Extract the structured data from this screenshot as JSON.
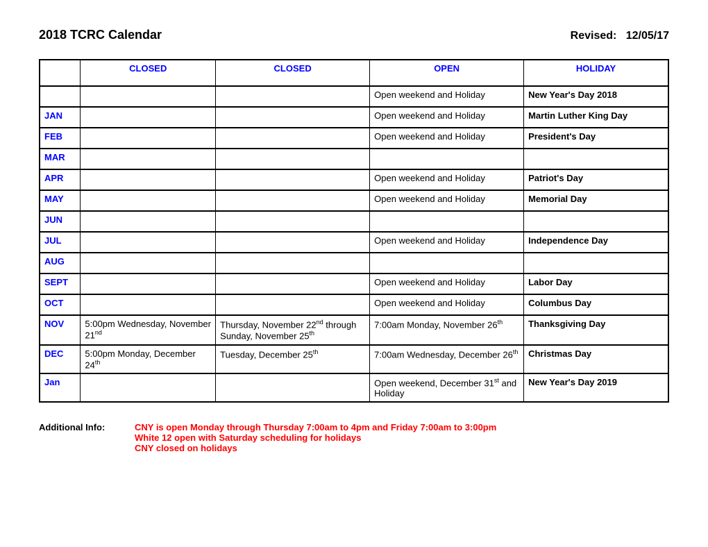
{
  "header": {
    "title": "2018 TCRC Calendar",
    "revised_label": "Revised:",
    "revised_date": "12/05/17"
  },
  "table": {
    "headers": [
      "",
      "CLOSED",
      "CLOSED",
      "OPEN",
      "HOLIDAY"
    ],
    "rows": [
      {
        "month": "",
        "closed1": "",
        "closed2": "",
        "open": "Open weekend and Holiday",
        "holiday": "New Year's Day 2018"
      },
      {
        "month": "JAN",
        "closed1": "",
        "closed2": "",
        "open": "Open weekend and Holiday",
        "holiday": "Martin Luther King Day"
      },
      {
        "month": "FEB",
        "closed1": "",
        "closed2": "",
        "open": "Open weekend and Holiday",
        "holiday": "President's Day"
      },
      {
        "month": "MAR",
        "closed1": "",
        "closed2": "",
        "open": "",
        "holiday": ""
      },
      {
        "month": "APR",
        "closed1": "",
        "closed2": "",
        "open": "Open weekend and Holiday",
        "holiday": "Patriot's Day"
      },
      {
        "month": "MAY",
        "closed1": "",
        "closed2": "",
        "open": "Open weekend and Holiday",
        "holiday": "Memorial Day"
      },
      {
        "month": "JUN",
        "closed1": "",
        "closed2": "",
        "open": "",
        "holiday": ""
      },
      {
        "month": "JUL",
        "closed1": "",
        "closed2": "",
        "open": "Open weekend and Holiday",
        "holiday": "Independence Day"
      },
      {
        "month": "AUG",
        "closed1": "",
        "closed2": "",
        "open": "",
        "holiday": ""
      },
      {
        "month": "SEPT",
        "closed1": "",
        "closed2": "",
        "open": "Open weekend and Holiday",
        "holiday": "Labor Day"
      },
      {
        "month": "OCT",
        "closed1": "",
        "closed2": "",
        "open": "Open weekend and Holiday",
        "holiday": "Columbus Day"
      },
      {
        "month": "NOV",
        "closed1_html": "5:00pm Wednesday, November 21<span class=\"sup\">nd</span>",
        "closed2_html": "Thursday, November 22<span class=\"sup\">nd</span> through Sunday, November 25<span class=\"sup\">th</span>",
        "open_html": "7:00am Monday, November 26<span class=\"sup\">th</span>",
        "holiday": "Thanksgiving Day"
      },
      {
        "month": "DEC",
        "closed1_html": "5:00pm Monday, December 24<span class=\"sup\">th</span>",
        "closed2_html": "Tuesday, December 25<span class=\"sup\">th</span>",
        "open_html": "7:00am Wednesday, December 26<span class=\"sup\">th</span>",
        "holiday": "Christmas Day"
      },
      {
        "month": "Jan",
        "closed1": "",
        "closed2": "",
        "open_html": "Open weekend, December 31<span class=\"sup\">st</span> and Holiday",
        "holiday": "New Year's Day 2019"
      }
    ]
  },
  "footer": {
    "label": "Additional Info:",
    "lines": [
      "CNY is open Monday through Thursday 7:00am to 4pm and Friday 7:00am to 3:00pm",
      "White 12 open with Saturday scheduling for holidays",
      "CNY closed on holidays"
    ]
  }
}
